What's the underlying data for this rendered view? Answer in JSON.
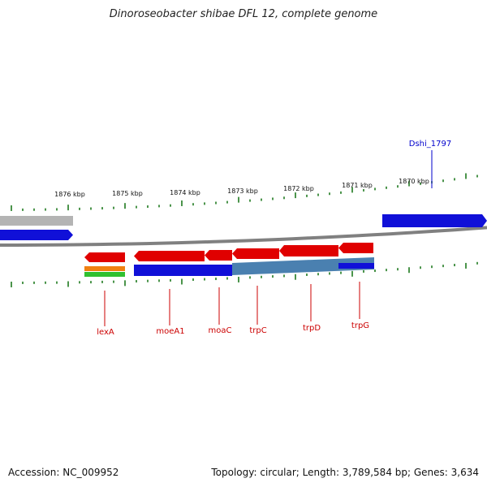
{
  "title": "Dinoroseobacter shibae DFL 12, complete genome",
  "footer": {
    "accession": "Accession: NC_009952",
    "topology": "Topology: circular; Length: 3,789,584 bp; Genes: 3,634"
  },
  "colors": {
    "forward_gene": "#e00000",
    "cds_blue": "#1010d8",
    "cds_steel": "#4a80b0",
    "grey_feature": "#b4b4b4",
    "tick": "#1e7a1e",
    "backbone": "#808080",
    "label_red": "#cc0000",
    "label_blue": "#0000cc",
    "orange_feature": "#f08010",
    "green_feature": "#30c030"
  },
  "ticks": [
    {
      "label": "1876 kbp"
    },
    {
      "label": "1875 kbp"
    },
    {
      "label": "1874 kbp"
    },
    {
      "label": "1873 kbp"
    },
    {
      "label": "1872 kbp"
    },
    {
      "label": "1871 kbp"
    },
    {
      "label": "1870 kbp"
    }
  ],
  "genes": [
    {
      "name": "lexA"
    },
    {
      "name": "moeA1"
    },
    {
      "name": "moaC"
    },
    {
      "name": "trpC"
    },
    {
      "name": "trpD"
    },
    {
      "name": "trpG"
    },
    {
      "name": "Dshi_1797"
    }
  ]
}
